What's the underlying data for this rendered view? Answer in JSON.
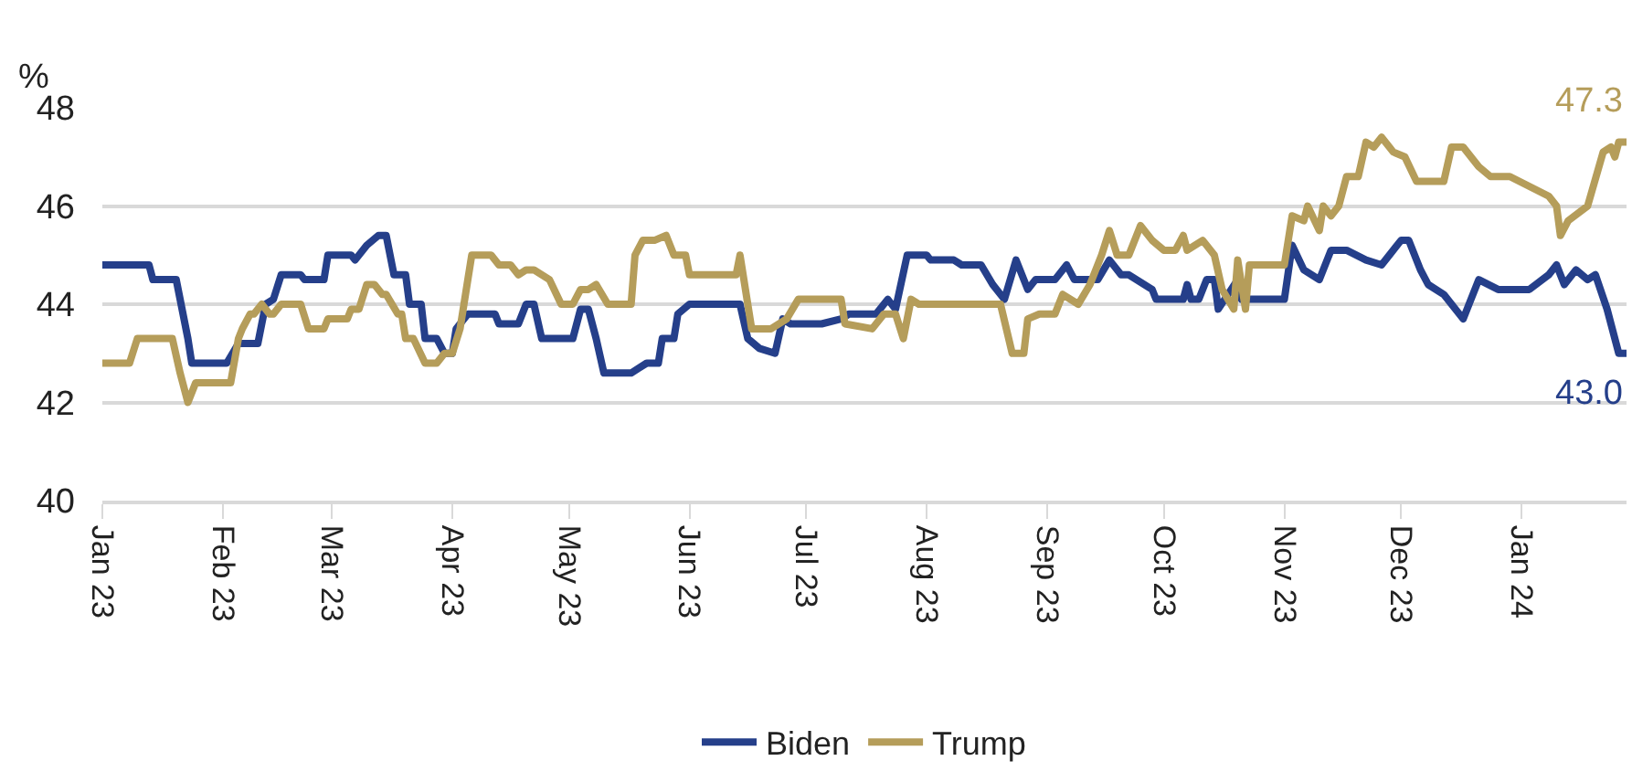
{
  "chart_data": {
    "type": "line",
    "ylabel": "%",
    "xlim": [
      "2023-01-01",
      "2024-01-28"
    ],
    "ylim": [
      40,
      48
    ],
    "yticks": [
      40,
      42,
      44,
      46,
      48
    ],
    "xticks": [
      {
        "value": "2023-01-01",
        "label": "Jan 23"
      },
      {
        "value": "2023-02-01",
        "label": "Feb 23"
      },
      {
        "value": "2023-03-01",
        "label": "Mar 23"
      },
      {
        "value": "2023-04-01",
        "label": "Apr 23"
      },
      {
        "value": "2023-05-01",
        "label": "May 23"
      },
      {
        "value": "2023-06-01",
        "label": "Jun 23"
      },
      {
        "value": "2023-07-01",
        "label": "Jul 23"
      },
      {
        "value": "2023-08-01",
        "label": "Aug 23"
      },
      {
        "value": "2023-09-01",
        "label": "Sep 23"
      },
      {
        "value": "2023-10-01",
        "label": "Oct 23"
      },
      {
        "value": "2023-11-01",
        "label": "Nov 23"
      },
      {
        "value": "2023-12-01",
        "label": "Dec 23"
      },
      {
        "value": "2024-01-01",
        "label": "Jan 24"
      }
    ],
    "grid": "y",
    "legend": "bottom",
    "marker": "none",
    "line_style": "solid",
    "annotations": [
      {
        "text": "43.0",
        "x": "2024-01-28",
        "y": 43.0
      },
      {
        "text": "47.3",
        "x": "2024-01-28",
        "y": 47.3
      }
    ],
    "series": [
      {
        "name": "Biden",
        "color": "#253f8a",
        "x": [
          "2023-01-01",
          "2023-01-13",
          "2023-01-14",
          "2023-01-20",
          "2023-01-23",
          "2023-01-24",
          "2023-02-02",
          "2023-02-05",
          "2023-02-10",
          "2023-02-12",
          "2023-02-14",
          "2023-02-16",
          "2023-02-21",
          "2023-02-22",
          "2023-02-27",
          "2023-02-28",
          "2023-03-06",
          "2023-03-07",
          "2023-03-10",
          "2023-03-13",
          "2023-03-15",
          "2023-03-17",
          "2023-03-20",
          "2023-03-21",
          "2023-03-24",
          "2023-03-25",
          "2023-03-28",
          "2023-03-30",
          "2023-04-01",
          "2023-04-02",
          "2023-04-05",
          "2023-04-12",
          "2023-04-13",
          "2023-04-18",
          "2023-04-20",
          "2023-04-22",
          "2023-04-24",
          "2023-05-02",
          "2023-05-04",
          "2023-05-06",
          "2023-05-08",
          "2023-05-10",
          "2023-05-17",
          "2023-05-19",
          "2023-05-21",
          "2023-05-24",
          "2023-05-25",
          "2023-05-28",
          "2023-05-29",
          "2023-06-01",
          "2023-06-14",
          "2023-06-16",
          "2023-06-19",
          "2023-06-23",
          "2023-06-25",
          "2023-06-27",
          "2023-07-05",
          "2023-07-10",
          "2023-07-12",
          "2023-07-19",
          "2023-07-22",
          "2023-07-24",
          "2023-07-27",
          "2023-08-01",
          "2023-08-02",
          "2023-08-08",
          "2023-08-10",
          "2023-08-15",
          "2023-08-18",
          "2023-08-21",
          "2023-08-24",
          "2023-08-27",
          "2023-08-29",
          "2023-09-03",
          "2023-09-06",
          "2023-09-08",
          "2023-09-14",
          "2023-09-17",
          "2023-09-20",
          "2023-09-22",
          "2023-09-28",
          "2023-09-29",
          "2023-10-06",
          "2023-10-07",
          "2023-10-08",
          "2023-10-10",
          "2023-10-12",
          "2023-10-14",
          "2023-10-15",
          "2023-10-20",
          "2023-10-21",
          "2023-11-01",
          "2023-11-03",
          "2023-11-06",
          "2023-11-10",
          "2023-11-13",
          "2023-11-17",
          "2023-11-22",
          "2023-11-26",
          "2023-12-01",
          "2023-12-03",
          "2023-12-06",
          "2023-12-08",
          "2023-12-12",
          "2023-12-17",
          "2023-12-21",
          "2023-12-26",
          "2024-01-03",
          "2024-01-08",
          "2024-01-10",
          "2024-01-12",
          "2024-01-15",
          "2024-01-18",
          "2024-01-20",
          "2024-01-23",
          "2024-01-26",
          "2024-01-28"
        ],
        "values": [
          44.8,
          44.8,
          44.5,
          44.5,
          43.3,
          42.8,
          42.8,
          43.2,
          43.2,
          44.0,
          44.1,
          44.6,
          44.6,
          44.5,
          44.5,
          45.0,
          45.0,
          44.9,
          45.2,
          45.4,
          45.4,
          44.6,
          44.6,
          44.0,
          44.0,
          43.3,
          43.3,
          43.0,
          43.0,
          43.5,
          43.8,
          43.8,
          43.6,
          43.6,
          44.0,
          44.0,
          43.3,
          43.3,
          43.9,
          43.9,
          43.3,
          42.6,
          42.6,
          42.7,
          42.8,
          42.8,
          43.3,
          43.3,
          43.8,
          44.0,
          44.0,
          43.3,
          43.1,
          43.0,
          43.7,
          43.6,
          43.6,
          43.7,
          43.8,
          43.8,
          44.1,
          43.9,
          45.0,
          45.0,
          44.9,
          44.9,
          44.8,
          44.8,
          44.4,
          44.1,
          44.9,
          44.3,
          44.5,
          44.5,
          44.8,
          44.5,
          44.5,
          44.9,
          44.6,
          44.6,
          44.3,
          44.1,
          44.1,
          44.4,
          44.1,
          44.1,
          44.5,
          44.5,
          43.9,
          44.5,
          44.1,
          44.1,
          45.2,
          44.7,
          44.5,
          45.1,
          45.1,
          44.9,
          44.8,
          45.3,
          45.3,
          44.7,
          44.4,
          44.2,
          43.7,
          44.5,
          44.3,
          44.3,
          44.6,
          44.8,
          44.4,
          44.7,
          44.5,
          44.6,
          43.9,
          43.0,
          43.0
        ]
      },
      {
        "name": "Trump",
        "color": "#b59d5a",
        "x": [
          "2023-01-01",
          "2023-01-08",
          "2023-01-10",
          "2023-01-19",
          "2023-01-21",
          "2023-01-23",
          "2023-01-25",
          "2023-02-03",
          "2023-02-05",
          "2023-02-06",
          "2023-02-08",
          "2023-02-09",
          "2023-02-11",
          "2023-02-13",
          "2023-02-14",
          "2023-02-16",
          "2023-02-21",
          "2023-02-23",
          "2023-02-27",
          "2023-02-28",
          "2023-03-05",
          "2023-03-06",
          "2023-03-08",
          "2023-03-10",
          "2023-03-12",
          "2023-03-14",
          "2023-03-15",
          "2023-03-18",
          "2023-03-19",
          "2023-03-20",
          "2023-03-22",
          "2023-03-25",
          "2023-03-28",
          "2023-03-30",
          "2023-04-01",
          "2023-04-03",
          "2023-04-06",
          "2023-04-11",
          "2023-04-13",
          "2023-04-16",
          "2023-04-18",
          "2023-04-20",
          "2023-04-22",
          "2023-04-26",
          "2023-04-29",
          "2023-05-02",
          "2023-05-04",
          "2023-05-06",
          "2023-05-08",
          "2023-05-11",
          "2023-05-17",
          "2023-05-18",
          "2023-05-20",
          "2023-05-23",
          "2023-05-26",
          "2023-05-28",
          "2023-05-31",
          "2023-06-01",
          "2023-06-13",
          "2023-06-14",
          "2023-06-17",
          "2023-06-22",
          "2023-06-26",
          "2023-06-29",
          "2023-07-10",
          "2023-07-11",
          "2023-07-18",
          "2023-07-21",
          "2023-07-24",
          "2023-07-26",
          "2023-07-28",
          "2023-07-30",
          "2023-08-20",
          "2023-08-23",
          "2023-08-26",
          "2023-08-27",
          "2023-08-30",
          "2023-09-03",
          "2023-09-05",
          "2023-09-09",
          "2023-09-12",
          "2023-09-15",
          "2023-09-17",
          "2023-09-19",
          "2023-09-22",
          "2023-09-25",
          "2023-09-28",
          "2023-10-01",
          "2023-10-04",
          "2023-10-06",
          "2023-10-07",
          "2023-10-11",
          "2023-10-14",
          "2023-10-16",
          "2023-10-19",
          "2023-10-20",
          "2023-10-22",
          "2023-10-23",
          "2023-11-01",
          "2023-11-03",
          "2023-11-06",
          "2023-11-07",
          "2023-11-10",
          "2023-11-11",
          "2023-11-13",
          "2023-11-15",
          "2023-11-17",
          "2023-11-20",
          "2023-11-22",
          "2023-11-24",
          "2023-11-26",
          "2023-11-29",
          "2023-12-02",
          "2023-12-05",
          "2023-12-12",
          "2023-12-14",
          "2023-12-17",
          "2023-12-21",
          "2023-12-24",
          "2023-12-29",
          "2024-01-03",
          "2024-01-08",
          "2024-01-10",
          "2024-01-11",
          "2024-01-13",
          "2024-01-18",
          "2024-01-22",
          "2024-01-24",
          "2024-01-25",
          "2024-01-26",
          "2024-01-28"
        ],
        "values": [
          42.8,
          42.8,
          43.3,
          43.3,
          42.6,
          42.0,
          42.4,
          42.4,
          43.3,
          43.5,
          43.8,
          43.8,
          44.0,
          43.8,
          43.8,
          44.0,
          44.0,
          43.5,
          43.5,
          43.7,
          43.7,
          43.9,
          43.9,
          44.4,
          44.4,
          44.2,
          44.2,
          43.8,
          43.8,
          43.3,
          43.3,
          42.8,
          42.8,
          43.0,
          43.0,
          43.5,
          45.0,
          45.0,
          44.8,
          44.8,
          44.6,
          44.7,
          44.7,
          44.5,
          44.0,
          44.0,
          44.3,
          44.3,
          44.4,
          44.0,
          44.0,
          45.0,
          45.3,
          45.3,
          45.4,
          45.0,
          45.0,
          44.6,
          44.6,
          45.0,
          43.5,
          43.5,
          43.7,
          44.1,
          44.1,
          43.6,
          43.5,
          43.8,
          43.8,
          43.3,
          44.1,
          44.0,
          44.0,
          43.0,
          43.0,
          43.7,
          43.8,
          43.8,
          44.2,
          44.0,
          44.4,
          45.0,
          45.5,
          45.0,
          45.0,
          45.6,
          45.3,
          45.1,
          45.1,
          45.4,
          45.1,
          45.3,
          45.0,
          44.3,
          43.9,
          44.9,
          43.9,
          44.8,
          44.8,
          45.8,
          45.7,
          46.0,
          45.5,
          46.0,
          45.8,
          46.0,
          46.6,
          46.6,
          47.3,
          47.2,
          47.4,
          47.1,
          47.0,
          46.5,
          46.5,
          47.2,
          47.2,
          46.8,
          46.6,
          46.6,
          46.4,
          46.2,
          46.0,
          45.4,
          45.7,
          46.0,
          47.1,
          47.2,
          47.0,
          47.3,
          47.3
        ]
      }
    ]
  }
}
